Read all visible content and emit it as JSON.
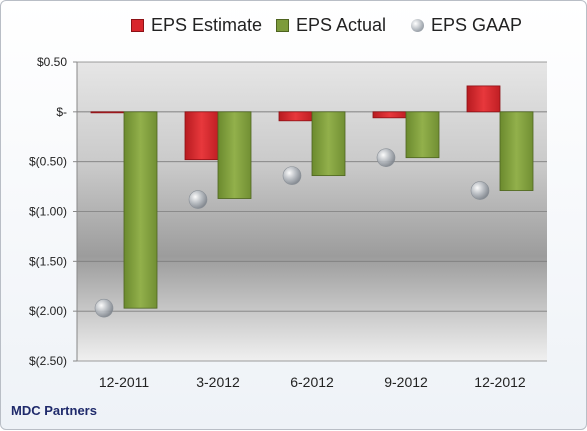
{
  "chart_data": {
    "type": "bar",
    "categories": [
      "12-2011",
      "3-2012",
      "6-2012",
      "9-2012",
      "12-2012"
    ],
    "series": [
      {
        "name": "EPS Estimate",
        "type": "bar",
        "color": "#d8262c",
        "values": [
          -0.01,
          -0.48,
          -0.09,
          -0.06,
          0.26
        ]
      },
      {
        "name": "EPS Actual",
        "type": "bar",
        "color": "#7d9b3b",
        "values": [
          -1.97,
          -0.87,
          -0.64,
          -0.46,
          -0.79
        ]
      },
      {
        "name": "EPS GAAP",
        "type": "marker",
        "color": "#aeb4ba",
        "values": [
          -1.97,
          -0.88,
          -0.64,
          -0.46,
          -0.79
        ]
      }
    ],
    "yticks": [
      0.5,
      0,
      -0.5,
      -1.0,
      -1.5,
      -2.0,
      -2.5
    ],
    "ytick_labels": [
      "$0.50",
      "$-",
      "$(0.50)",
      "$(1.00)",
      "$(1.50)",
      "$(2.00)",
      "$(2.50)"
    ],
    "ylim": [
      -2.5,
      0.5
    ],
    "grid": true,
    "legend": "top"
  },
  "footer": {
    "company": "MDC Partners"
  }
}
